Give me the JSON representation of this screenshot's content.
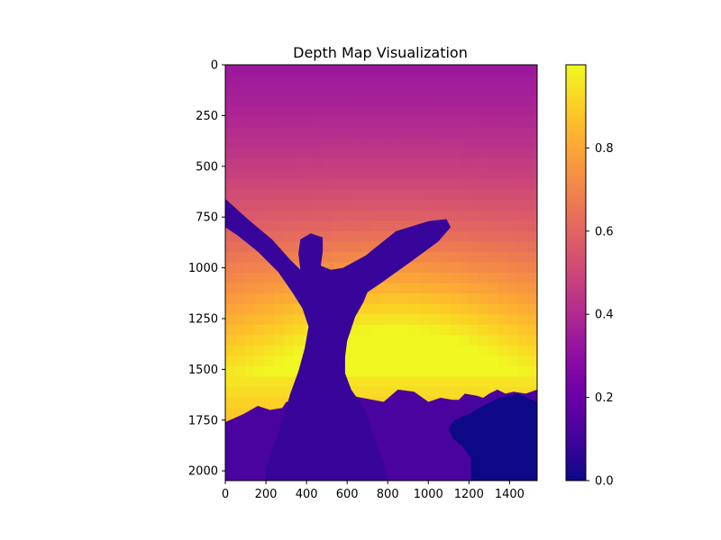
{
  "chart_data": {
    "type": "heatmap",
    "title": "Depth Map Visualization",
    "colormap": "plasma",
    "image_extent": {
      "x": [
        0,
        1536
      ],
      "y": [
        0,
        2048
      ]
    },
    "xlim": [
      0,
      1536
    ],
    "ylim": [
      2048,
      0
    ],
    "xticks": [
      0,
      200,
      400,
      600,
      800,
      1000,
      1200,
      1400
    ],
    "yticks": [
      0,
      250,
      500,
      750,
      1000,
      1250,
      1500,
      1750,
      2000
    ],
    "colorbar": {
      "range": [
        0,
        1
      ],
      "ticks": [
        0.0,
        0.2,
        0.4,
        0.6,
        0.8
      ],
      "tick_labels": [
        "0.0",
        "0.2",
        "0.4",
        "0.6",
        "0.8"
      ]
    },
    "grid": false,
    "silhouettes": {
      "person_value": 0.08,
      "crowd_value": 0.12,
      "dog_value": 0.0,
      "person": [
        [
          0,
          660
        ],
        [
          110,
          760
        ],
        [
          230,
          860
        ],
        [
          320,
          960
        ],
        [
          370,
          1010
        ],
        [
          360,
          930
        ],
        [
          370,
          860
        ],
        [
          420,
          830
        ],
        [
          480,
          850
        ],
        [
          480,
          920
        ],
        [
          470,
          990
        ],
        [
          520,
          1010
        ],
        [
          580,
          1000
        ],
        [
          690,
          940
        ],
        [
          840,
          820
        ],
        [
          1000,
          770
        ],
        [
          1090,
          760
        ],
        [
          1110,
          800
        ],
        [
          1050,
          870
        ],
        [
          900,
          980
        ],
        [
          760,
          1080
        ],
        [
          700,
          1120
        ],
        [
          680,
          1170
        ],
        [
          640,
          1240
        ],
        [
          600,
          1360
        ],
        [
          590,
          1440
        ],
        [
          590,
          1520
        ],
        [
          620,
          1600
        ],
        [
          690,
          1700
        ],
        [
          740,
          1860
        ],
        [
          780,
          1960
        ],
        [
          800,
          2048
        ],
        [
          200,
          2048
        ],
        [
          200,
          1990
        ],
        [
          270,
          1790
        ],
        [
          320,
          1620
        ],
        [
          360,
          1510
        ],
        [
          390,
          1400
        ],
        [
          410,
          1290
        ],
        [
          380,
          1200
        ],
        [
          330,
          1120
        ],
        [
          260,
          1020
        ],
        [
          160,
          920
        ],
        [
          60,
          840
        ],
        [
          0,
          800
        ]
      ],
      "crowd": [
        [
          0,
          2048
        ],
        [
          0,
          1760
        ],
        [
          90,
          1720
        ],
        [
          160,
          1680
        ],
        [
          220,
          1700
        ],
        [
          280,
          1690
        ],
        [
          300,
          1660
        ],
        [
          430,
          1650
        ],
        [
          620,
          1630
        ],
        [
          780,
          1660
        ],
        [
          850,
          1600
        ],
        [
          930,
          1610
        ],
        [
          1000,
          1660
        ],
        [
          1060,
          1640
        ],
        [
          1120,
          1650
        ],
        [
          1150,
          1650
        ],
        [
          1180,
          1620
        ],
        [
          1240,
          1630
        ],
        [
          1270,
          1640
        ],
        [
          1300,
          1620
        ],
        [
          1340,
          1600
        ],
        [
          1380,
          1620
        ],
        [
          1420,
          1610
        ],
        [
          1480,
          1620
        ],
        [
          1536,
          1600
        ],
        [
          1536,
          2048
        ]
      ],
      "dog": [
        [
          1536,
          1660
        ],
        [
          1440,
          1620
        ],
        [
          1350,
          1640
        ],
        [
          1270,
          1680
        ],
        [
          1200,
          1720
        ],
        [
          1130,
          1750
        ],
        [
          1100,
          1790
        ],
        [
          1120,
          1840
        ],
        [
          1170,
          1880
        ],
        [
          1210,
          1940
        ],
        [
          1210,
          2048
        ],
        [
          1536,
          2048
        ]
      ]
    }
  }
}
